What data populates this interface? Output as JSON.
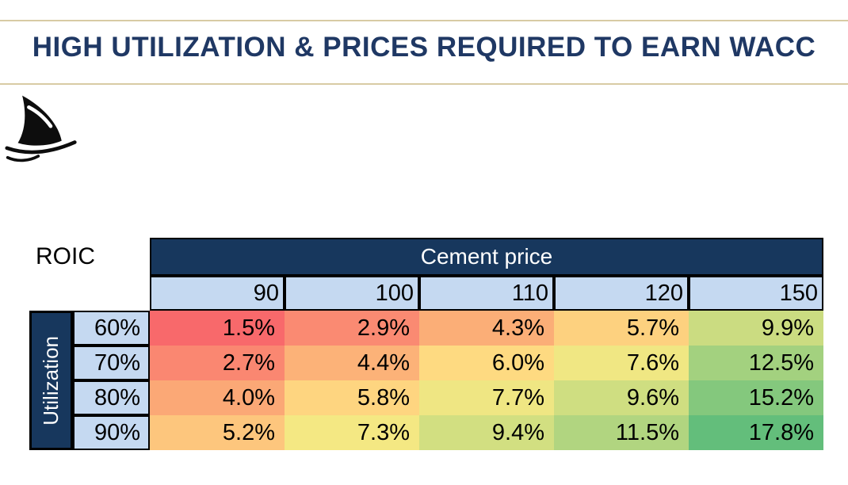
{
  "title": "HIGH UTILIZATION & PRICES REQUIRED TO EARN WACC",
  "logo": "shark-fin",
  "colors": {
    "title_text": "#1f3864",
    "rule_tan": "#d8cba4",
    "header_navy": "#17375d",
    "header_light_blue": "#c5d9f1",
    "border_black": "#000000",
    "scale_min_red": "#F8696B",
    "scale_mid_yellow": "#FFEB84",
    "scale_max_green": "#63BE7B"
  },
  "matrix": {
    "corner_label": "ROIC",
    "col_group_label": "Cement price",
    "row_group_label": "Utilization"
  },
  "chart_data": {
    "type": "heatmap",
    "title": "HIGH UTILIZATION & PRICES REQUIRED TO EARN WACC",
    "value_label": "ROIC",
    "x_label": "Cement price",
    "y_label": "Utilization",
    "columns": [
      "90",
      "100",
      "110",
      "120",
      "150"
    ],
    "rows": [
      "60%",
      "70%",
      "80%",
      "90%"
    ],
    "values": [
      [
        1.5,
        2.9,
        4.3,
        5.7,
        9.9
      ],
      [
        2.7,
        4.4,
        6.0,
        7.6,
        12.5
      ],
      [
        4.0,
        5.8,
        7.7,
        9.6,
        15.2
      ],
      [
        5.2,
        7.3,
        9.4,
        11.5,
        17.8
      ]
    ],
    "cell_text": [
      [
        "1.5%",
        "2.9%",
        "4.3%",
        "5.7%",
        "9.9%"
      ],
      [
        "2.7%",
        "4.4%",
        "6.0%",
        "7.6%",
        "12.5%"
      ],
      [
        "4.0%",
        "5.8%",
        "7.7%",
        "9.6%",
        "15.2%"
      ],
      [
        "5.2%",
        "7.3%",
        "9.4%",
        "11.5%",
        "17.8%"
      ]
    ],
    "cell_colors": [
      [
        "#F8696B",
        "#FA8A72",
        "#FBAE77",
        "#FDD17F",
        "#CBDC81"
      ],
      [
        "#FA8771",
        "#FCB278",
        "#FEDA81",
        "#F0E783",
        "#A3D17F"
      ],
      [
        "#FBA876",
        "#FED580",
        "#EFE683",
        "#CFDE81",
        "#84C87D"
      ],
      [
        "#FDC67D",
        "#F4E883",
        "#D2DF81",
        "#B1D580",
        "#63BE7B"
      ]
    ],
    "colorscale": {
      "min": "#F8696B",
      "mid": "#FFEB84",
      "max": "#63BE7B"
    },
    "legend": "none",
    "grid": "off"
  }
}
